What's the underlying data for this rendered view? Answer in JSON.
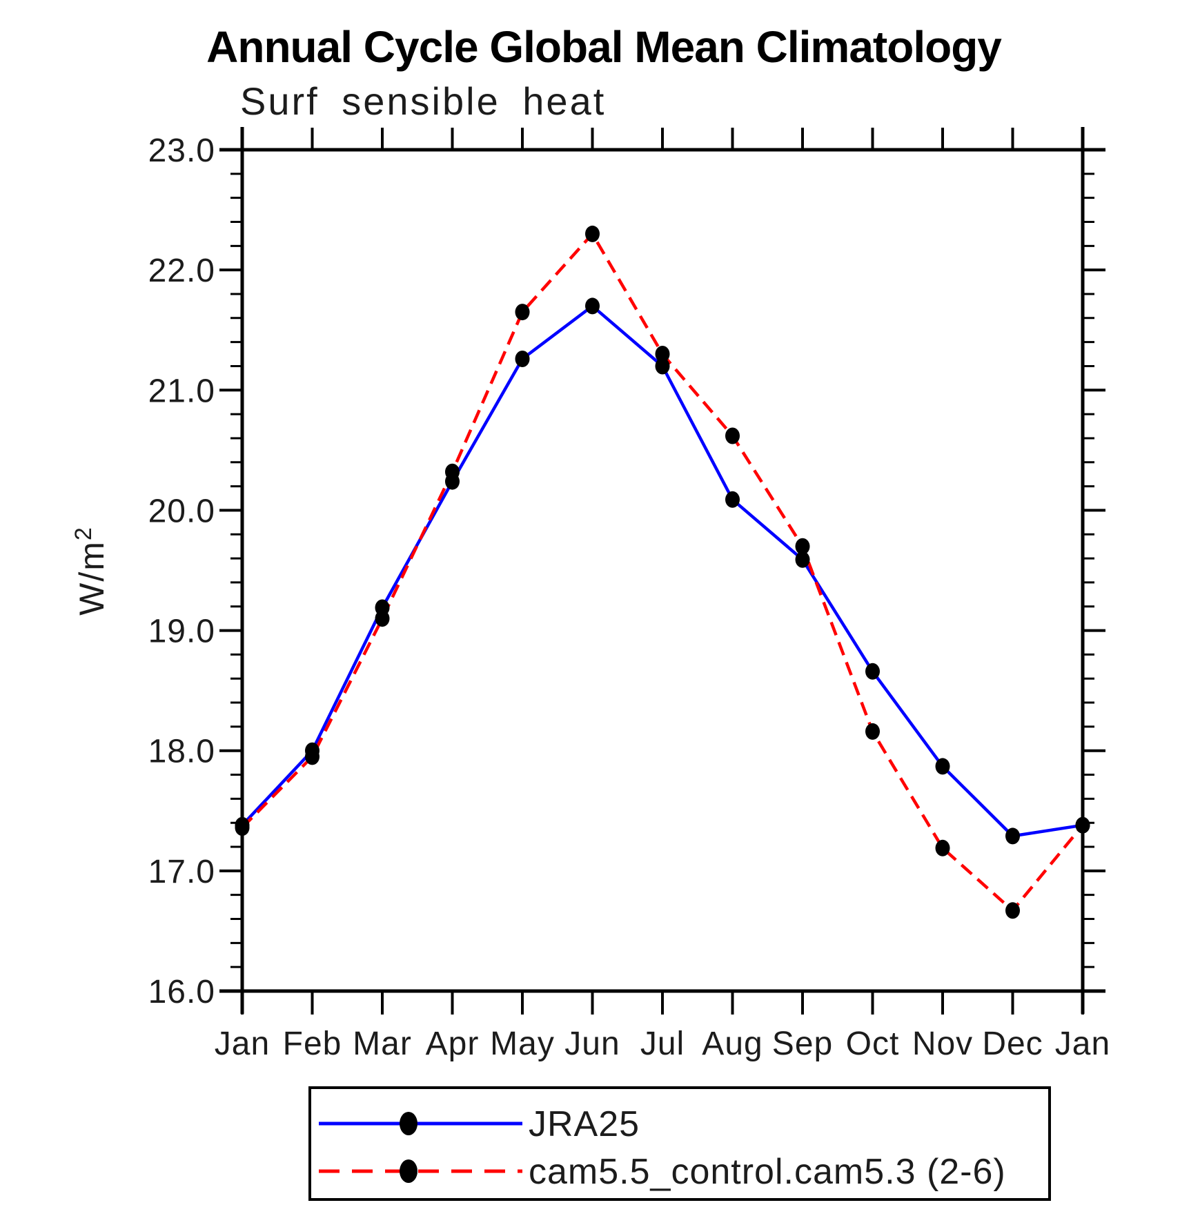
{
  "chart_data": {
    "type": "line",
    "title": "Annual Cycle Global Mean Climatology",
    "subtitle": "Surf sensible heat",
    "ylabel_base": "W/m",
    "ylabel_exponent": "2",
    "x_categories": [
      "Jan",
      "Feb",
      "Mar",
      "Apr",
      "May",
      "Jun",
      "Jul",
      "Aug",
      "Sep",
      "Oct",
      "Nov",
      "Dec",
      "Jan"
    ],
    "ylim": [
      16.0,
      23.0
    ],
    "y_major_step": 1.0,
    "y_minor_step": 0.2,
    "y_tick_labels": [
      "16.0",
      "17.0",
      "18.0",
      "19.0",
      "20.0",
      "21.0",
      "22.0",
      "23.0"
    ],
    "grid": false,
    "legend_position": "bottom",
    "axis_color": "#000000",
    "marker_color": "#000000",
    "series": [
      {
        "name": "JRA25",
        "color": "#0000ff",
        "style": "solid",
        "marker": "circle",
        "values": [
          17.38,
          18.0,
          19.19,
          20.24,
          21.26,
          21.7,
          21.2,
          20.09,
          19.59,
          18.66,
          17.87,
          17.29,
          17.38
        ]
      },
      {
        "name": "cam5.5_control.cam5.3 (2-6)",
        "color": "#ff0000",
        "style": "dashed",
        "marker": "circle",
        "values": [
          17.36,
          17.95,
          19.1,
          20.32,
          21.65,
          22.3,
          21.3,
          20.62,
          19.7,
          18.16,
          17.19,
          16.67,
          17.38
        ]
      }
    ]
  }
}
